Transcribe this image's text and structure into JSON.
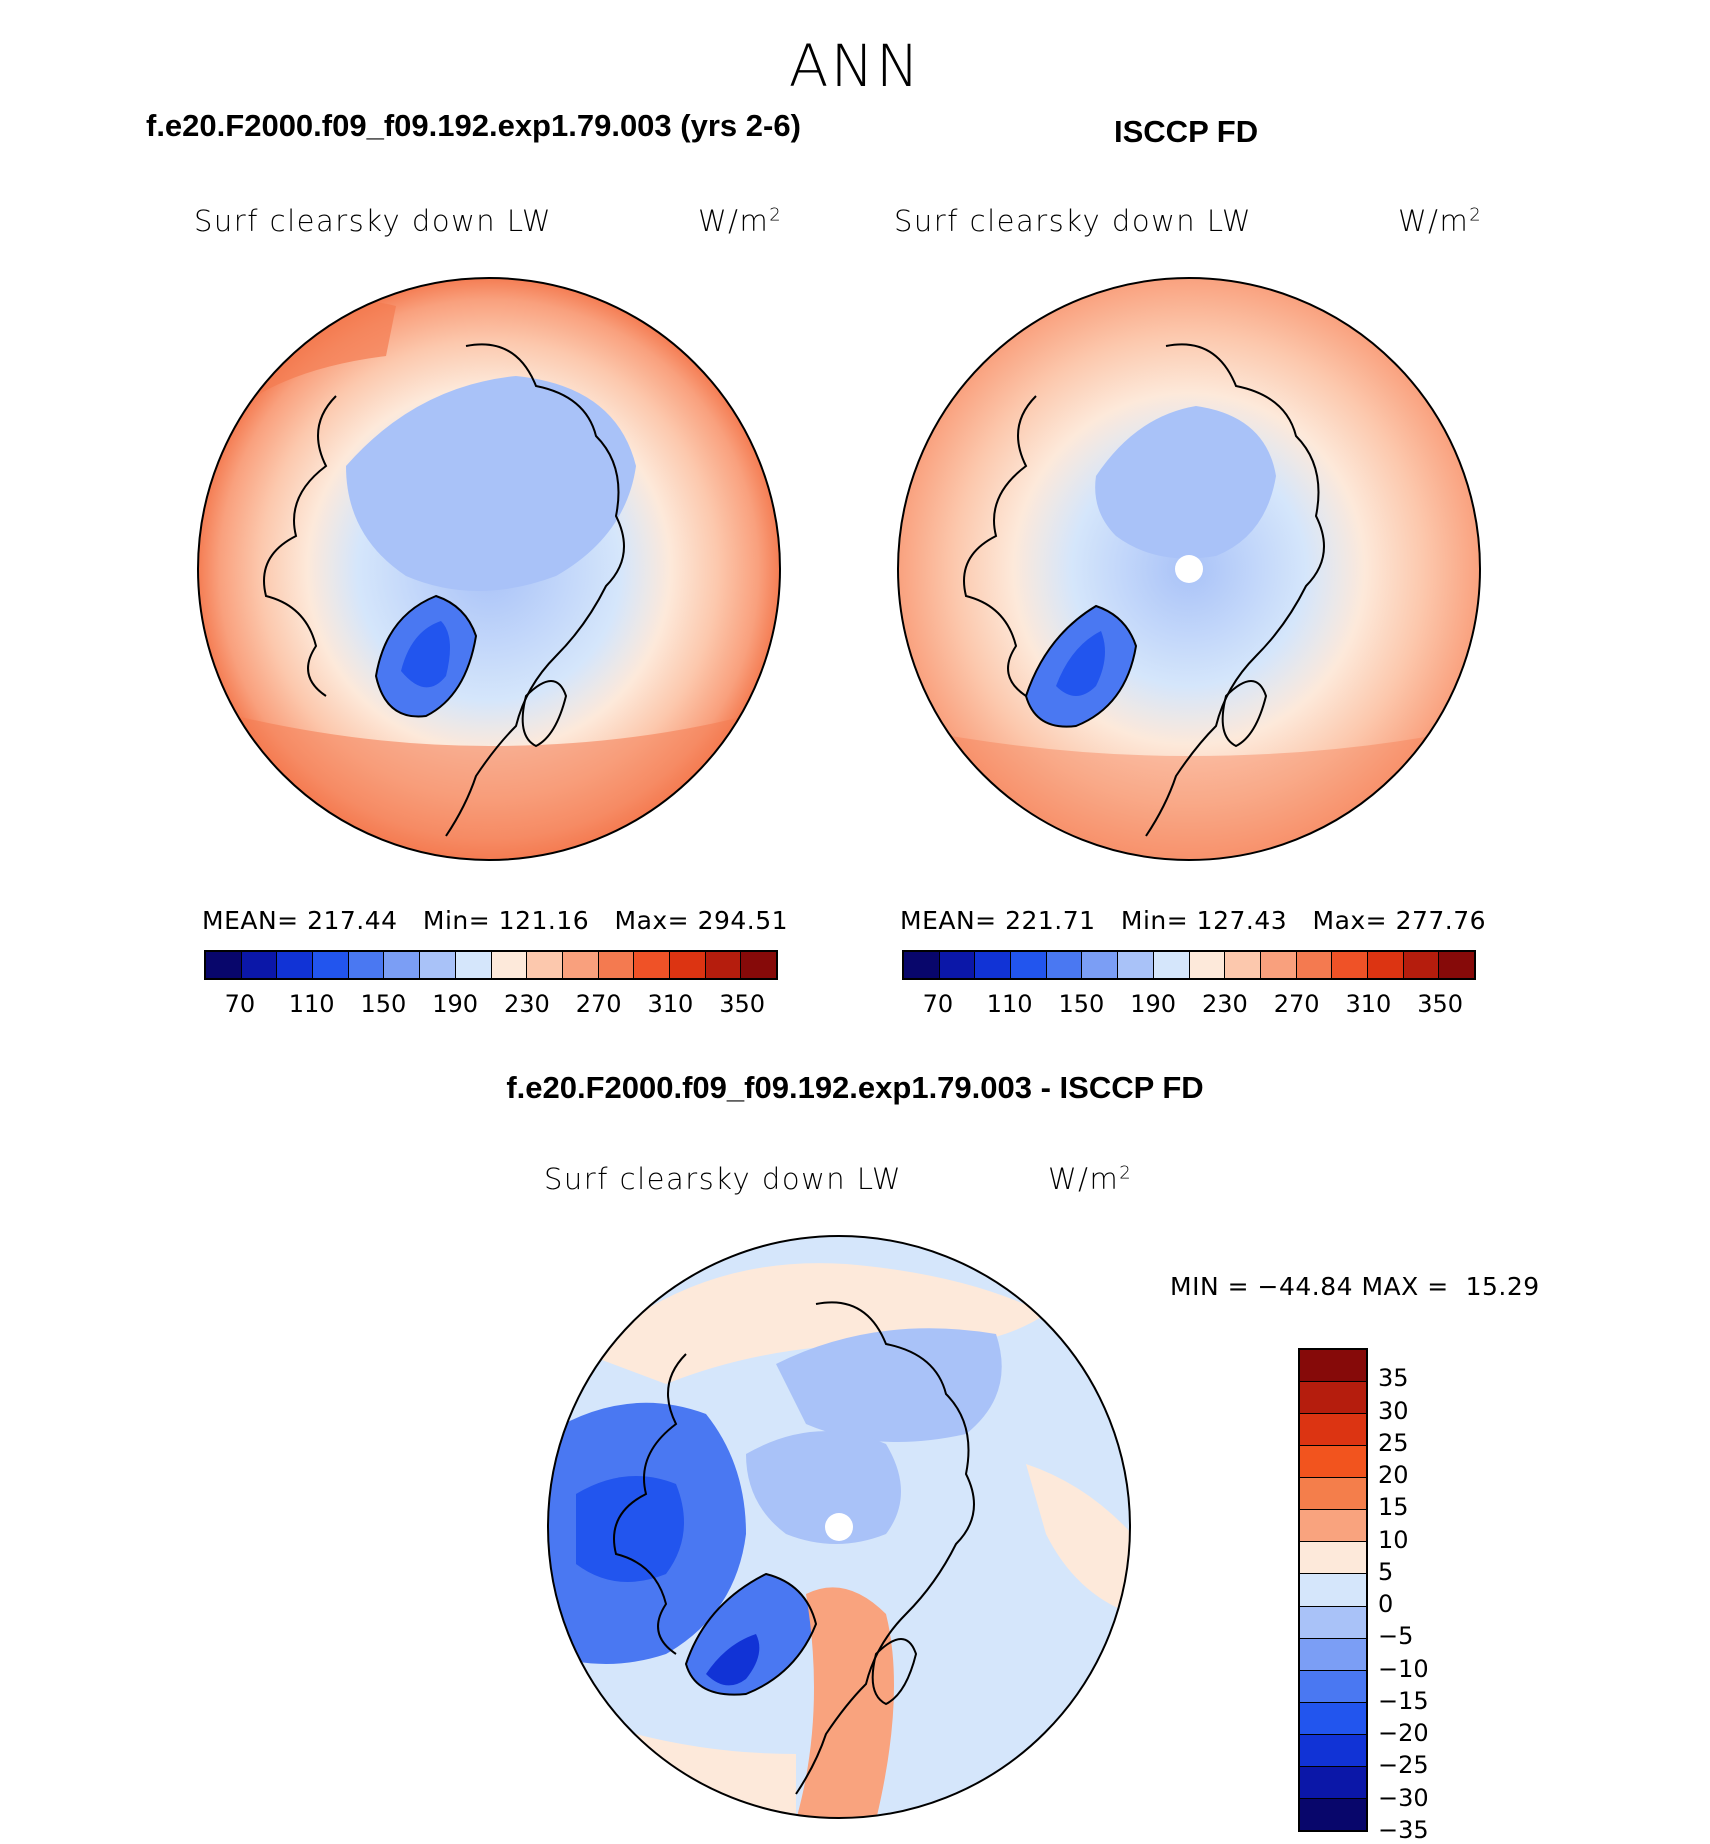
{
  "header": {
    "title": "ANN"
  },
  "panels": [
    {
      "id": "model",
      "case_title": "f.e20.F2000.f09_f09.192.exp1.79.003 (yrs 2-6)",
      "variable": "Surf clearsky down LW",
      "units_base": "W/m",
      "units_exp": "2",
      "stats": {
        "mean_label": "MEAN=",
        "mean": "217.44",
        "min_label": "Min=",
        "min": "121.16",
        "max_label": "Max=",
        "max": "294.51"
      },
      "colorbar_ticks": [
        "70",
        "110",
        "150",
        "190",
        "230",
        "270",
        "310",
        "350"
      ]
    },
    {
      "id": "obs",
      "case_title": "ISCCP FD",
      "variable": "Surf clearsky down LW",
      "units_base": "W/m",
      "units_exp": "2",
      "stats": {
        "mean_label": "MEAN=",
        "mean": "221.71",
        "min_label": "Min=",
        "min": "127.43",
        "max_label": "Max=",
        "max": "277.76"
      },
      "colorbar_ticks": [
        "70",
        "110",
        "150",
        "190",
        "230",
        "270",
        "310",
        "350"
      ]
    }
  ],
  "diff": {
    "title": "f.e20.F2000.f09_f09.192.exp1.79.003 - ISCCP FD",
    "variable": "Surf clearsky down LW",
    "units_base": "W/m",
    "units_exp": "2",
    "minmax": {
      "min_label": "MIN =",
      "min": "−44.84",
      "max_label": "MAX =",
      "max": "15.29"
    },
    "colorbar_ticks": [
      "35",
      "30",
      "25",
      "20",
      "15",
      "10",
      "5",
      "0",
      "−5",
      "−10",
      "−15",
      "−20",
      "−25",
      "−30",
      "−35"
    ]
  },
  "palettes": {
    "abs": [
      "#08066b",
      "#0b17a8",
      "#1133d6",
      "#2255ee",
      "#4a78f2",
      "#7b9ef5",
      "#a9c2f8",
      "#d5e6fb",
      "#fde9da",
      "#fcc8ad",
      "#f9a07d",
      "#f47a50",
      "#ef5227",
      "#dc3412",
      "#b51d0d",
      "#860a09"
    ],
    "diff": [
      "#860a09",
      "#b51d0d",
      "#dc3412",
      "#f2541e",
      "#f47e4b",
      "#f9a37e",
      "#fde9da",
      "#d5e6fb",
      "#a9c2f8",
      "#7b9ef5",
      "#4a78f2",
      "#2255ee",
      "#1133d6",
      "#0b17a8",
      "#08066b"
    ]
  }
}
